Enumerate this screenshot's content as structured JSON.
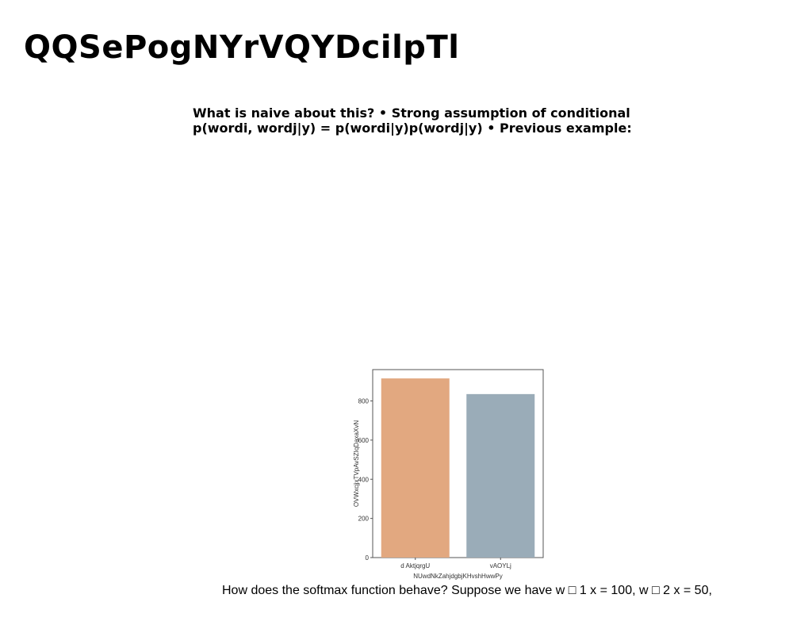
{
  "slide": {
    "title": "QQSePogNYrVQYDcilpTl",
    "body_lines": [
      "What is naive about this? • Strong assumption of conditional",
      "p(wordi, wordj|y) = p(wordi|y)p(wordj|y) • Previous example:"
    ],
    "footer_text": "How does the softmax function behave? Suppose we have w □ 1 x = 100, w □ 2 x = 50,"
  },
  "chart_data": {
    "type": "bar",
    "categories": [
      "d AktjqrgU",
      "vAOYLj"
    ],
    "values": [
      915,
      835
    ],
    "colors": [
      "#e2a880",
      "#9aacb8"
    ],
    "xlabel": "NUwdNkZahjdgbjKHvshHwwPy",
    "ylabel": "OVWxcjjxTVpAvSZIqDaxaXvN",
    "ylim": [
      0,
      960
    ],
    "yticks": [
      0,
      200,
      400,
      600,
      800
    ],
    "grid": false
  }
}
